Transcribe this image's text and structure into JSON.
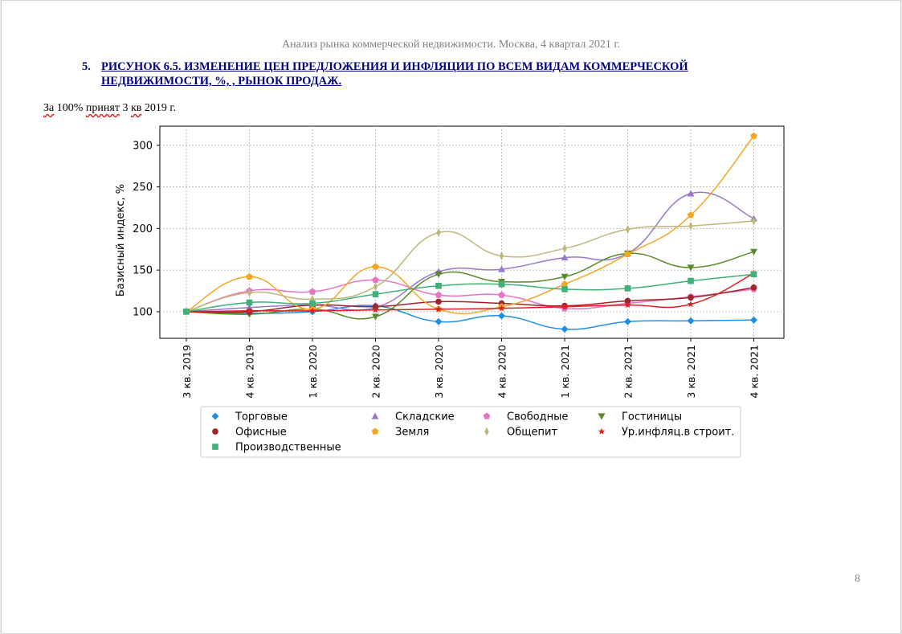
{
  "header": {
    "text": "Анализ рынка коммерческой недвижимости.  Москва, 4 квартал 2021 г."
  },
  "heading": {
    "number": "5.",
    "text": "РИСУНОК 6.5. ИЗМЕНЕНИЕ ЦЕН ПРЕДЛОЖЕНИЯ И ИНФЛЯЦИИ ПО ВСЕМ ВИДАМ КОММЕРЧЕСКОЙ НЕДВИЖИМОСТИ, %, , РЫНОК ПРОДАЖ."
  },
  "note": {
    "w1": "За",
    "w2": " 100% ",
    "w3": "принят",
    "w4": " 3 ",
    "w5": "кв",
    "w6": " 2019 г."
  },
  "page_number": "8",
  "chart_data": {
    "type": "line",
    "ylabel": "Базисный индекс, %",
    "xlabel": "",
    "ylim": [
      68,
      323
    ],
    "yticks": [
      100,
      150,
      200,
      250,
      300
    ],
    "grid": true,
    "legend_position": "bottom",
    "categories": [
      "3 кв. 2019",
      "4 кв. 2019",
      "1 кв. 2020",
      "2 кв. 2020",
      "3 кв. 2020",
      "4 кв. 2020",
      "1 кв. 2021",
      "2 кв. 2021",
      "3 кв. 2021",
      "4 кв. 2021"
    ],
    "series": [
      {
        "name": "Торговые",
        "marker": "diamond",
        "color": "#1f8ee8",
        "values": [
          100,
          98,
          100,
          107,
          88,
          95,
          79,
          88,
          89,
          90
        ]
      },
      {
        "name": "Складские",
        "marker": "triangle-up",
        "color": "#9a78cc",
        "values": [
          100,
          105,
          108,
          105,
          148,
          151,
          165,
          170,
          242,
          212
        ]
      },
      {
        "name": "Свободные",
        "marker": "pentagon",
        "color": "#e873c4",
        "values": [
          100,
          125,
          124,
          138,
          120,
          120,
          104,
          110,
          118,
          127
        ]
      },
      {
        "name": "Гостиницы",
        "marker": "triangle-down",
        "color": "#5a8a2a",
        "values": [
          100,
          97,
          103,
          94,
          145,
          136,
          142,
          170,
          153,
          172
        ]
      },
      {
        "name": "Офисные",
        "marker": "circle",
        "color": "#a0242a",
        "values": [
          100,
          100,
          108,
          106,
          112,
          110,
          107,
          113,
          117,
          129
        ]
      },
      {
        "name": "Земля",
        "marker": "pentagon",
        "color": "#f5a623",
        "values": [
          100,
          142,
          103,
          154,
          103,
          106,
          133,
          169,
          216,
          311
        ]
      },
      {
        "name": "Общепит",
        "marker": "thin-diamond",
        "color": "#bdb77a",
        "values": [
          100,
          123,
          115,
          130,
          195,
          167,
          176,
          199,
          203,
          209
        ]
      },
      {
        "name": "Ур.инфляц.в строит.",
        "marker": "star",
        "color": "#e02020",
        "values": [
          100,
          101,
          101,
          102,
          103,
          104,
          106,
          108,
          109,
          146
        ]
      },
      {
        "name": "Производственные",
        "marker": "square",
        "color": "#3fb178",
        "values": [
          100,
          111,
          110,
          121,
          131,
          133,
          127,
          128,
          137,
          145
        ]
      }
    ]
  }
}
